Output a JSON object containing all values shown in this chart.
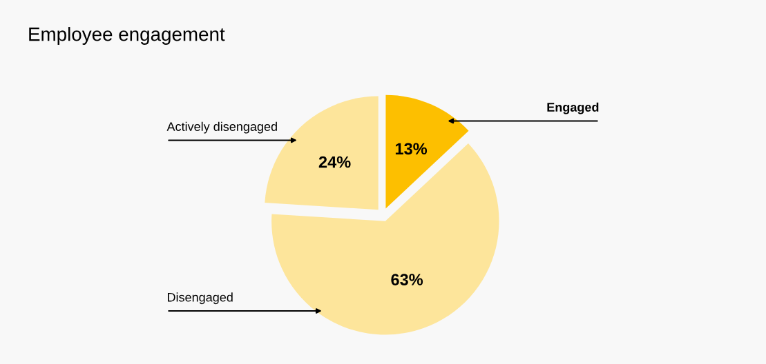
{
  "chart_data": {
    "type": "pie",
    "title": "Employee engagement",
    "categories": [
      "Engaged",
      "Disengaged",
      "Actively disengaged"
    ],
    "values": [
      13,
      63,
      24
    ],
    "colors": [
      "#fdbf00",
      "#fde59b",
      "#fde59b"
    ],
    "value_labels": [
      "13%",
      "63%",
      "24%"
    ]
  }
}
